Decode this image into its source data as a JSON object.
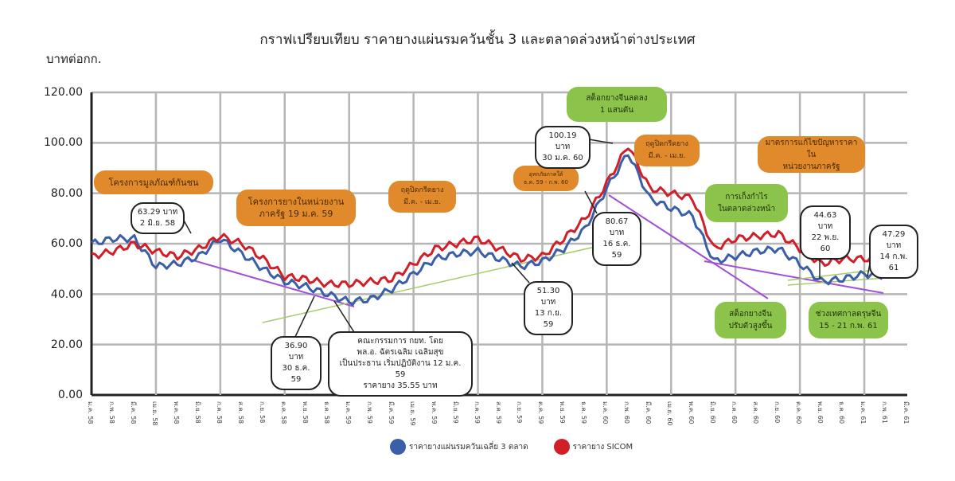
{
  "title": "กราฟเปรียบเทียบ ราคายางแผ่นรมควันชั้น 3 และตลาดล่วงหน้าต่างประเทศ",
  "unit_label": "บาทต่อกก.",
  "chart_data": {
    "type": "line",
    "title": "กราฟเปรียบเทียบ ราคายางแผ่นรมควันชั้น 3 และตลาดล่วงหน้าต่างประเทศ",
    "ylabel": "บาทต่อกก.",
    "xlabel": "",
    "ylim": [
      0,
      120
    ],
    "yticks": [
      "120.00",
      "100.00",
      "80.00",
      "60.00",
      "40.00",
      "20.00",
      "0.00"
    ],
    "grid": true,
    "legend_position": "bottom",
    "categories": [
      "ม.ค. 58",
      "ก.พ. 58",
      "มี.ค. 58",
      "เม.ย. 58",
      "พ.ค. 58",
      "มิ.ย. 58",
      "ก.ค. 58",
      "ส.ค. 58",
      "ก.ย. 58",
      "ต.ค. 58",
      "พ.ย. 58",
      "ธ.ค. 58",
      "ม.ค. 59",
      "ก.พ. 59",
      "มี.ค. 59",
      "เม.ย. 59",
      "พ.ค. 59",
      "มิ.ย. 59",
      "ก.ค. 59",
      "ส.ค. 59",
      "ก.ย. 59",
      "ต.ค. 59",
      "พ.ย. 59",
      "ธ.ค. 59",
      "ม.ค. 60",
      "ก.พ. 60",
      "มี.ค. 60",
      "เม.ย. 60",
      "พ.ค. 60",
      "มิ.ย. 60",
      "ก.ค. 60",
      "ส.ค. 60",
      "ก.ย. 60",
      "ต.ค. 60",
      "พ.ย. 60",
      "ธ.ค. 60",
      "ม.ค. 61",
      "ก.พ. 61",
      "มี.ค. 61"
    ],
    "series": [
      {
        "name": "ราคายางแผ่นรมควันเฉลี่ย 3 ตลาด",
        "color": "#3a5ea8",
        "values": [
          60,
          62,
          62,
          51,
          52,
          55,
          62,
          56,
          50,
          45,
          43,
          40,
          37,
          38,
          42,
          48,
          54,
          56,
          57,
          54,
          51,
          53,
          58,
          66,
          82,
          96,
          78,
          74,
          71,
          53,
          55,
          57,
          58,
          52,
          45,
          46,
          48,
          47,
          null
        ]
      },
      {
        "name": "ราคายาง SICOM",
        "color": "#d01f28",
        "values": [
          55,
          57,
          60,
          57,
          55,
          58,
          63,
          60,
          54,
          47,
          46,
          44,
          44,
          45,
          46,
          52,
          58,
          60,
          62,
          58,
          54,
          55,
          62,
          70,
          84,
          99,
          82,
          80,
          78,
          58,
          62,
          63,
          64,
          58,
          52,
          54,
          54,
          54,
          null
        ]
      }
    ],
    "trendlines": [
      {
        "color": "#a14fd6",
        "desc": "downtrend 2558-2559"
      },
      {
        "color": "#a6cc6a",
        "desc": "uptrend 2559-2560"
      },
      {
        "color": "#a14fd6",
        "desc": "downtrend 2560"
      },
      {
        "color": "#a6cc6a",
        "desc": "uptrend 2561"
      }
    ],
    "annotations": [
      {
        "text": "63.29 บาท 2 มิ.ย. 58",
        "value": 63.29
      },
      {
        "text": "36.90 บาท 30 ธ.ค. 59",
        "value": 36.9
      },
      {
        "text": "51.30 บาท 13 ก.ย. 59",
        "value": 51.3
      },
      {
        "text": "100.19 บาท 30 ม.ค. 60",
        "value": 100.19
      },
      {
        "text": "80.67 บาท 16 ธ.ค. 59",
        "value": 80.67
      },
      {
        "text": "44.63 บาท 22 พ.ย. 60",
        "value": 44.63
      },
      {
        "text": "47.29 บาท 14 ก.พ. 61",
        "value": 47.29
      }
    ]
  },
  "event_boxes": {
    "orange_1": "โครงการมูลภัณฑ์กันชน",
    "orange_2_line1": "โครงการยางในหน่วยงาน",
    "orange_2_line2": "ภาครัฐ 19 ม.ค. 59",
    "orange_3_line1": "ฤดูปิดกรีดยาง",
    "orange_3_line2": "มี.ค. - เม.ย.",
    "orange_4_line1": "อุทกภัยภาคใต้",
    "orange_4_line2": "ธ.ค. 59 - ก.พ. 60",
    "orange_5_line1": "ฤดูปิดกรีดยาง",
    "orange_5_line2": "มี.ค. - เม.ย.",
    "orange_6_line1": "มาตรการแก้ไขปัญหาราคาใน",
    "orange_6_line2": "หน่วยงานภาครัฐ",
    "green_1_line1": "สต็อกยางจีนลดลง",
    "green_1_line2": "1 แสนตัน",
    "green_2_line1": "การเก็งกำไร",
    "green_2_line2": "ในตลาดล่วงหน้า",
    "green_3_line1": "สต็อกยางจีน",
    "green_3_line2": "ปรับตัวสูงขึ้น",
    "green_4_line1": "ช่วงเทศกาลตรุษจีน",
    "green_4_line2": "15 - 21 ก.พ. 61"
  },
  "callouts": {
    "c1_line1": "63.29 บาท",
    "c1_line2": "2 มิ.ย. 58",
    "c2_line1": "36.90 บาท",
    "c2_line2": "30 ธ.ค. 59",
    "c3_line1": "คณะกรรมการ กยท. โดย",
    "c3_line2": "พล.อ. ฉัตรเฉลิม เฉลิมสุข",
    "c3_line3": "เป็นประธาน เริ่มปฏิบัติงาน 12 ม.ค. 59",
    "c3_line4": "ราคายาง 35.55 บาท",
    "c4_line1": "51.30 บาท",
    "c4_line2": "13 ก.ย. 59",
    "c5_line1": "100.19 บาท",
    "c5_line2": "30 ม.ค. 60",
    "c6_line1": "80.67 บาท",
    "c6_line2": "16 ธ.ค. 59",
    "c7_line1": "44.63 บาท",
    "c7_line2": "22 พ.ย. 60",
    "c8_line1": "47.29 บาท",
    "c8_line2": "14 ก.พ. 61"
  },
  "legend": {
    "series_1": "ราคายางแผ่นรมควันเฉลี่ย 3 ตลาด",
    "series_2": "ราคายาง SICOM",
    "color_1": "#3a5ea8",
    "color_2": "#d01f28"
  }
}
